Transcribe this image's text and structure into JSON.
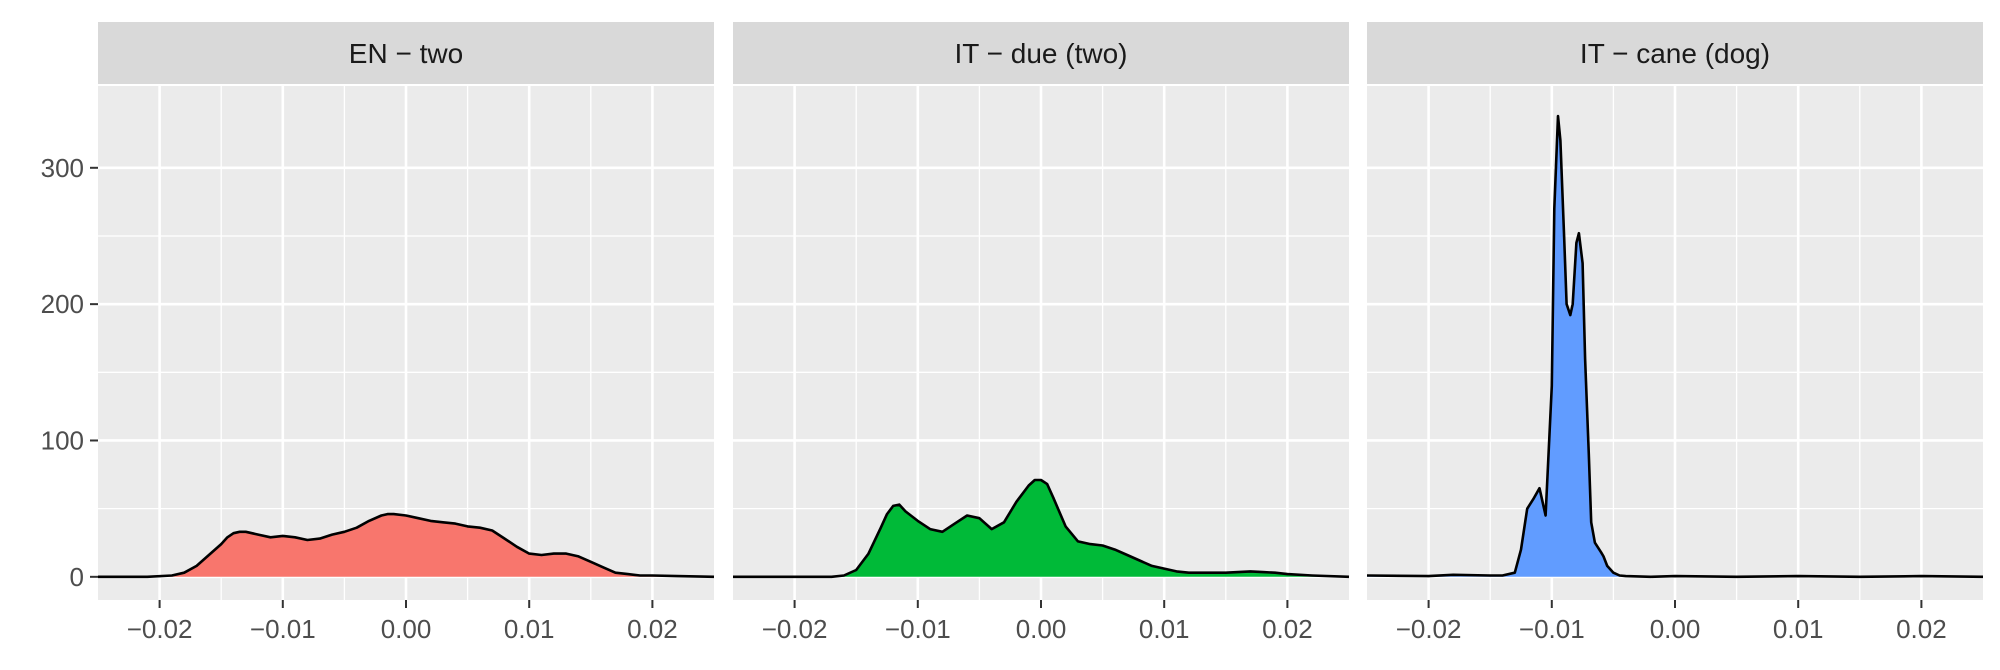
{
  "chart_data": {
    "type": "area",
    "x_ticks": [
      -0.02,
      -0.01,
      0.0,
      0.01,
      0.02
    ],
    "x_tick_labels": [
      "−0.02",
      "−0.01",
      "0.00",
      "0.01",
      "0.02"
    ],
    "xlim": [
      -0.025,
      0.025
    ],
    "y_ticks": [
      0,
      100,
      200,
      300
    ],
    "y_tick_labels": [
      "0",
      "100",
      "200",
      "300"
    ],
    "ylim": [
      -17,
      360
    ],
    "grid": true,
    "panels": [
      {
        "title": "EN  −  two",
        "color": "#F8766D",
        "x": [
          -0.025,
          -0.021,
          -0.019,
          -0.018,
          -0.017,
          -0.016,
          -0.015,
          -0.0145,
          -0.014,
          -0.0135,
          -0.013,
          -0.012,
          -0.011,
          -0.01,
          -0.009,
          -0.008,
          -0.007,
          -0.006,
          -0.005,
          -0.004,
          -0.003,
          -0.002,
          -0.0015,
          -0.001,
          0.0,
          0.001,
          0.002,
          0.003,
          0.004,
          0.005,
          0.006,
          0.007,
          0.008,
          0.009,
          0.01,
          0.011,
          0.012,
          0.013,
          0.014,
          0.015,
          0.016,
          0.017,
          0.018,
          0.019,
          0.02,
          0.022,
          0.025
        ],
        "y": [
          0,
          0,
          1,
          3,
          8,
          16,
          24,
          29,
          32,
          33,
          33,
          31,
          29,
          30,
          29,
          27,
          28,
          31,
          33,
          36,
          41,
          45,
          46,
          46,
          45,
          43,
          41,
          40,
          39,
          37,
          36,
          34,
          28,
          22,
          17,
          16,
          17,
          17,
          15,
          11,
          7,
          3,
          2,
          1,
          1,
          0.5,
          0
        ]
      },
      {
        "title": "IT  −  due (two)",
        "color": "#00BA38",
        "x": [
          -0.025,
          -0.017,
          -0.016,
          -0.015,
          -0.014,
          -0.013,
          -0.0125,
          -0.012,
          -0.0115,
          -0.011,
          -0.01,
          -0.009,
          -0.008,
          -0.007,
          -0.006,
          -0.005,
          -0.004,
          -0.003,
          -0.002,
          -0.001,
          -0.0005,
          0.0,
          0.0005,
          0.001,
          0.002,
          0.003,
          0.004,
          0.005,
          0.006,
          0.007,
          0.008,
          0.009,
          0.01,
          0.011,
          0.012,
          0.013,
          0.014,
          0.015,
          0.016,
          0.017,
          0.018,
          0.019,
          0.02,
          0.022,
          0.025
        ],
        "y": [
          0,
          0,
          1,
          5,
          17,
          36,
          46,
          52,
          53,
          48,
          41,
          35,
          33,
          39,
          45,
          43,
          35,
          40,
          55,
          67,
          71,
          71,
          68,
          58,
          37,
          26,
          24,
          23,
          20,
          16,
          12,
          8,
          6,
          4,
          3,
          3,
          3,
          3,
          3.5,
          4,
          3.5,
          3,
          2,
          1,
          0
        ]
      },
      {
        "title": "IT  −  cane (dog)",
        "color": "#619CFF",
        "x": [
          -0.025,
          -0.02,
          -0.018,
          -0.015,
          -0.014,
          -0.013,
          -0.0125,
          -0.012,
          -0.0115,
          -0.011,
          -0.0105,
          -0.01,
          -0.0098,
          -0.0095,
          -0.0093,
          -0.009,
          -0.0088,
          -0.0085,
          -0.0083,
          -0.008,
          -0.0078,
          -0.0075,
          -0.0073,
          -0.007,
          -0.0068,
          -0.0065,
          -0.006,
          -0.0058,
          -0.0055,
          -0.005,
          -0.0045,
          -0.004,
          -0.002,
          0.0,
          0.005,
          0.01,
          0.015,
          0.02,
          0.025
        ],
        "y": [
          1,
          0.5,
          1.5,
          1,
          1,
          3,
          20,
          50,
          57,
          65,
          45,
          140,
          270,
          338,
          320,
          250,
          200,
          192,
          200,
          245,
          252,
          230,
          160,
          90,
          40,
          25,
          18,
          15,
          8,
          3,
          1,
          0.5,
          0,
          0.5,
          0,
          0.5,
          0,
          0.5,
          0
        ]
      }
    ]
  }
}
